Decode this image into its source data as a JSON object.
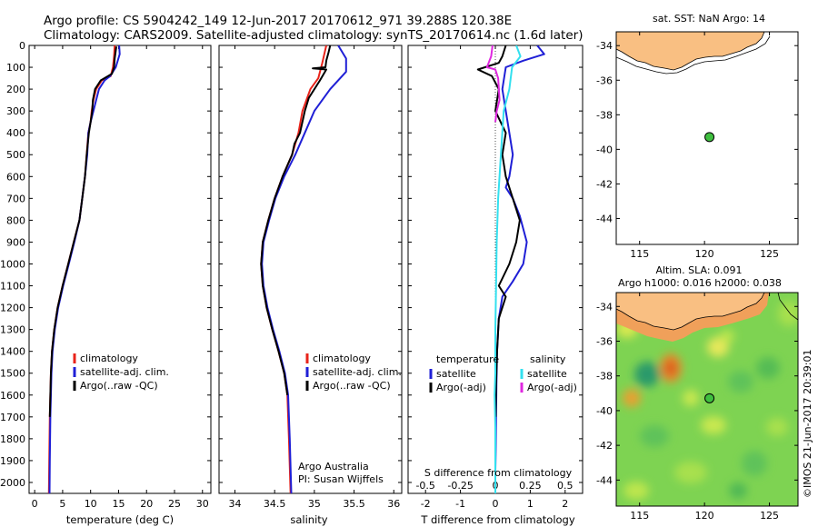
{
  "header": {
    "title_line1": "Argo profile: CS 5904242_149 12-Jun-2017 20170612_971 39.288S 120.38E",
    "title_line2": "Climatology: CARS2009. Satellite-adjusted climatology: synTS_20170614.nc (1.6d later)"
  },
  "colors": {
    "climatology": "#e8231a",
    "satellite": "#1f1fd6",
    "argo": "#000000",
    "satellite_salinity": "#33e0ef",
    "argo_adj_salinity": "#e028e0",
    "land": "#f9bf82"
  },
  "chart_data": [
    {
      "type": "line",
      "panel": "temperature",
      "xlabel": "temperature (deg C)",
      "ylabel": "",
      "xlim": [
        -1,
        31.5
      ],
      "ylim": [
        2050,
        0
      ],
      "xticks": [
        0,
        5,
        10,
        15,
        20,
        25,
        30
      ],
      "yticks": [
        0,
        100,
        200,
        300,
        400,
        500,
        600,
        700,
        800,
        900,
        1000,
        1100,
        1200,
        1300,
        1400,
        1500,
        1600,
        1700,
        1800,
        1900,
        2000
      ],
      "legend": [
        "climatology",
        "satellite-adj. clim.",
        "Argo(..raw -QC)"
      ],
      "legend_placement": "lower-center",
      "series": [
        {
          "name": "climatology",
          "color": "#e8231a",
          "x": [
            14.3,
            14.2,
            14.0,
            13.6,
            12.0,
            11.0,
            10.5,
            10.2,
            10.0,
            9.6,
            9.3,
            9.0,
            8.5,
            8.0,
            7.0,
            6.0,
            5.0,
            4.1,
            3.5,
            3.1,
            2.9,
            2.8,
            2.7,
            2.6,
            2.55
          ],
          "y": [
            0,
            50,
            100,
            140,
            160,
            200,
            250,
            300,
            350,
            400,
            500,
            600,
            700,
            800,
            900,
            1000,
            1100,
            1200,
            1300,
            1400,
            1500,
            1600,
            1700,
            1900,
            2050
          ]
        },
        {
          "name": "satellite-adj. clim.",
          "color": "#1f1fd6",
          "x": [
            15.1,
            15.2,
            14.5,
            13.5,
            12.5,
            11.5,
            11.0,
            10.5,
            10.0,
            9.6,
            9.4,
            9.0,
            8.5,
            8.0,
            7.1,
            6.1,
            5.1,
            4.2,
            3.6,
            3.2,
            3.0,
            2.9,
            2.8,
            2.7,
            2.65
          ],
          "y": [
            0,
            40,
            100,
            140,
            160,
            200,
            250,
            300,
            350,
            400,
            500,
            600,
            700,
            800,
            900,
            1000,
            1100,
            1200,
            1300,
            1400,
            1500,
            1600,
            1700,
            1900,
            2050
          ]
        },
        {
          "name": "Argo(..raw -QC)",
          "color": "#000000",
          "x": [
            14.6,
            14.3,
            14.2,
            13.8,
            11.8,
            10.8,
            10.4,
            10.3,
            10.0,
            9.7,
            9.3,
            9.0,
            8.5,
            8.0,
            7.0,
            6.0,
            5.0,
            4.1,
            3.5,
            3.1,
            2.9,
            2.8,
            2.7
          ],
          "y": [
            5,
            60,
            100,
            130,
            160,
            200,
            250,
            300,
            350,
            400,
            500,
            600,
            700,
            800,
            900,
            1000,
            1100,
            1200,
            1300,
            1400,
            1500,
            1600,
            1700
          ]
        }
      ]
    },
    {
      "type": "line",
      "panel": "salinity",
      "xlabel": "salinity",
      "ylabel": "",
      "xlim": [
        33.8,
        36.1
      ],
      "ylim": [
        2050,
        0
      ],
      "xticks": [
        34,
        34.5,
        35,
        35.5,
        36
      ],
      "xticklabels": [
        "34",
        "34.5",
        "35",
        "35.5",
        "36"
      ],
      "legend": [
        "climatology",
        "satellite-adj. clim.",
        "Argo(..raw -QC)"
      ],
      "legend_placement": "lower-center",
      "annotation": [
        "Argo Australia",
        "PI: Susan Wijffels"
      ],
      "series": [
        {
          "name": "climatology",
          "color": "#e8231a",
          "x": [
            35.15,
            35.1,
            35.05,
            34.95,
            34.85,
            34.8,
            34.72,
            34.6,
            34.5,
            34.42,
            34.35,
            34.33,
            34.35,
            34.4,
            34.47,
            34.55,
            34.62,
            34.66,
            34.68,
            34.7
          ],
          "y": [
            0,
            80,
            150,
            200,
            300,
            400,
            500,
            600,
            700,
            800,
            900,
            1000,
            1100,
            1200,
            1300,
            1400,
            1500,
            1600,
            1800,
            2050
          ]
        },
        {
          "name": "satellite-adj. clim.",
          "color": "#1f1fd6",
          "x": [
            35.3,
            35.4,
            35.4,
            35.2,
            35.0,
            34.88,
            34.76,
            34.62,
            34.51,
            34.43,
            34.36,
            34.34,
            34.36,
            34.41,
            34.48,
            34.56,
            34.63,
            34.67,
            34.69,
            34.71
          ],
          "y": [
            0,
            60,
            120,
            200,
            300,
            400,
            500,
            600,
            700,
            800,
            900,
            1000,
            1100,
            1200,
            1300,
            1400,
            1500,
            1600,
            1800,
            2050
          ]
        },
        {
          "name": "Argo(..raw -QC)",
          "color": "#000000",
          "x": [
            35.2,
            35.18,
            35.15,
            35.14,
            34.98,
            35.15,
            35.07,
            34.93,
            34.88,
            34.82,
            34.75,
            34.72,
            34.6,
            34.5,
            34.42,
            34.35,
            34.33,
            34.35,
            34.4,
            34.47,
            34.55,
            34.62,
            34.66
          ],
          "y": [
            0,
            30,
            70,
            100,
            105,
            110,
            160,
            240,
            300,
            400,
            450,
            500,
            600,
            700,
            800,
            900,
            1000,
            1100,
            1200,
            1300,
            1400,
            1500,
            1600
          ]
        }
      ]
    },
    {
      "type": "line",
      "panel": "difference",
      "xlabel": "T difference from climatology",
      "xlabel2": "S difference from climatology",
      "xlim": [
        -2.5,
        2.5
      ],
      "x2lim": [
        -0.625,
        0.625
      ],
      "ylim": [
        2050,
        0
      ],
      "xticks": [
        -2,
        -1,
        0,
        1,
        2
      ],
      "x2ticks": [
        -0.5,
        -0.25,
        0,
        0.25,
        0.5
      ],
      "x2ticklabels": [
        "-0.5",
        "-0.25",
        "0",
        "0.25",
        "0.5"
      ],
      "legend_headings": [
        "temperature",
        "salinity"
      ],
      "legend": [
        "satellite",
        "Argo(-adj)",
        "satellite",
        "Argo(-adj)"
      ],
      "legend_placement": "lower-center",
      "series": [
        {
          "name": "satellite",
          "quantity": "temperature",
          "color": "#1f1fd6",
          "x": [
            1.2,
            1.4,
            0.8,
            0.3,
            0.2,
            0.3,
            0.4,
            0.5,
            0.4,
            0.3,
            0.5,
            0.7,
            0.9,
            0.8,
            0.5,
            0.2,
            0.1,
            0.05,
            0.03,
            0.02,
            0.01,
            0.0,
            0.0
          ],
          "y": [
            0,
            40,
            70,
            100,
            200,
            300,
            400,
            500,
            600,
            650,
            700,
            780,
            900,
            1000,
            1080,
            1150,
            1250,
            1400,
            1550,
            1700,
            1850,
            1950,
            2050
          ]
        },
        {
          "name": "Argo(-adj)",
          "quantity": "temperature",
          "color": "#000000",
          "x": [
            0.3,
            0.2,
            0.1,
            -0.5,
            -0.1,
            0.1,
            0.0,
            0.3,
            0.2,
            0.3,
            0.5,
            0.7,
            0.6,
            0.4,
            0.1,
            0.3,
            0.1,
            0.05,
            0.02,
            0.01
          ],
          "y": [
            0,
            50,
            80,
            110,
            140,
            200,
            300,
            400,
            500,
            600,
            700,
            800,
            900,
            1000,
            1100,
            1150,
            1250,
            1400,
            1550,
            1700
          ]
        },
        {
          "name": "satellite",
          "quantity": "salinity",
          "color": "#33e0ef",
          "x": [
            0.15,
            0.18,
            0.12,
            0.1,
            0.06,
            0.04,
            0.02,
            0.01,
            0.005,
            0.0,
            0.0,
            -0.005,
            0.0,
            0.0,
            0.0
          ],
          "y": [
            0,
            50,
            100,
            200,
            300,
            500,
            700,
            900,
            1100,
            1300,
            1500,
            1600,
            1750,
            1900,
            2050
          ]
        },
        {
          "name": "Argo(-adj)",
          "quantity": "salinity",
          "color": "#e028e0",
          "x": [
            -0.02,
            -0.03,
            -0.06,
            0.0,
            0.02,
            0.03,
            0.01,
            0.0
          ],
          "y": [
            0,
            50,
            100,
            110,
            150,
            250,
            300,
            350
          ]
        }
      ]
    },
    {
      "type": "scatter",
      "panel": "location-map",
      "title": "sat. SST: NaN Argo: 14",
      "xlim": [
        113.2,
        127.2
      ],
      "ylim": [
        -45.5,
        -33.2
      ],
      "xticks": [
        115,
        120,
        125
      ],
      "yticks": [
        -34,
        -36,
        -38,
        -40,
        -42,
        -44
      ],
      "points": [
        {
          "x": 120.38,
          "y": -39.288,
          "color": "#3fbf3f"
        }
      ]
    },
    {
      "type": "heatmap",
      "panel": "altimetry-map",
      "title_line1": "Altim. SLA: 0.091",
      "title_line2": "Argo h1000: 0.016 h2000: 0.038",
      "xlim": [
        113.2,
        127.2
      ],
      "ylim": [
        -45.5,
        -33.2
      ],
      "xticks": [
        115,
        120,
        125
      ],
      "yticks": [
        -34,
        -36,
        -38,
        -40,
        -42,
        -44
      ],
      "points": [
        {
          "x": 120.38,
          "y": -39.288,
          "color": "#3fbf3f"
        }
      ]
    }
  ],
  "footer": {
    "stamp": "©IMOS 21-Jun-2017 20:39:01"
  }
}
